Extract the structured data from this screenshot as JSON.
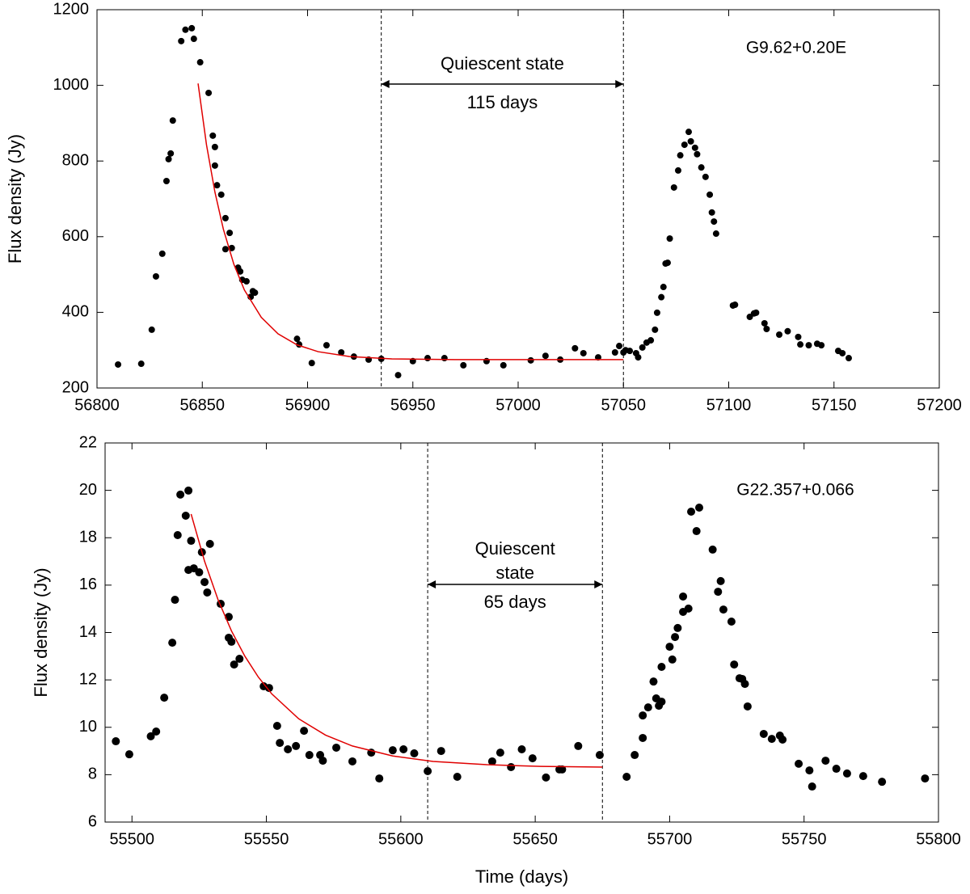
{
  "chart_data": [
    {
      "type": "scatter",
      "ylabel": "Flux density (Jy)",
      "xlim": [
        56800,
        57200
      ],
      "xticks": [
        56800,
        56850,
        56900,
        56950,
        57000,
        57050,
        57100,
        57150,
        57200
      ],
      "ylim": [
        200,
        1200
      ],
      "yticks": [
        200,
        400,
        600,
        800,
        1000,
        1200
      ],
      "label": "G9.62+0.20E",
      "interval": {
        "bounds": [
          56935,
          57050
        ],
        "text": [
          "Quiescent state"
        ],
        "duration": "115 days"
      },
      "series": [
        {
          "style": "points",
          "color": "#000000",
          "x": [
            56810,
            56821,
            56826,
            56828,
            56831,
            56833,
            56834,
            56835,
            56836,
            56840,
            56842,
            56845,
            56846,
            56849,
            56853,
            56855,
            56856,
            56856,
            56857,
            56859,
            56861,
            56861,
            56863,
            56864,
            56867,
            56868,
            56869,
            56871,
            56873,
            56874,
            56875,
            56895,
            56896,
            56902,
            56909,
            56916,
            56922,
            56929,
            56935,
            56943,
            56950,
            56957,
            56965,
            56974,
            56985,
            56993,
            57006,
            57013,
            57020,
            57027,
            57031,
            57038,
            57046,
            57048,
            57050,
            57051,
            57053,
            57056,
            57057,
            57059,
            57061,
            57063,
            57065,
            57066,
            57068,
            57069,
            57070,
            57071,
            57072,
            57074,
            57076,
            57077,
            57079,
            57081,
            57082,
            57084,
            57085,
            57087,
            57089,
            57091,
            57092,
            57093,
            57094,
            57102,
            57103,
            57110,
            57112,
            57113,
            57117,
            57118,
            57124,
            57128,
            57133,
            57134,
            57138,
            57142,
            57144,
            57152,
            57154,
            57157
          ],
          "values": [
            262,
            264,
            354,
            495,
            555,
            747,
            805,
            820,
            907,
            1117,
            1147,
            1151,
            1123,
            1061,
            980,
            867,
            837,
            788,
            736,
            711,
            567,
            649,
            610,
            570,
            518,
            508,
            486,
            482,
            441,
            456,
            452,
            330,
            315,
            266,
            313,
            294,
            283,
            275,
            277,
            234,
            271,
            279,
            279,
            260,
            271,
            260,
            273,
            285,
            275,
            305,
            292,
            281,
            294,
            311,
            294,
            300,
            298,
            292,
            281,
            307,
            320,
            326,
            354,
            399,
            440,
            467,
            529,
            531,
            595,
            730,
            775,
            815,
            843,
            877,
            852,
            835,
            818,
            783,
            758,
            711,
            664,
            640,
            608,
            418,
            420,
            388,
            397,
            399,
            371,
            356,
            341,
            350,
            335,
            315,
            313,
            317,
            313,
            298,
            292,
            279
          ]
        },
        {
          "style": "line",
          "color": "#e00000",
          "x": [
            56848,
            56852,
            56856,
            56860,
            56865,
            56870,
            56878,
            56886,
            56895,
            56905,
            56920,
            56940,
            56970,
            57010,
            57050
          ],
          "values": [
            1005,
            843,
            718,
            620,
            527,
            459,
            387,
            343,
            314,
            296,
            283,
            277,
            275,
            275,
            275
          ]
        }
      ]
    },
    {
      "type": "scatter",
      "xlabel": "Time (days)",
      "ylabel": "Flux density (Jy)",
      "xlim": [
        55490,
        55800
      ],
      "xticks": [
        55500,
        55550,
        55600,
        55650,
        55700,
        55750,
        55800
      ],
      "ylim": [
        6,
        22
      ],
      "yticks": [
        6,
        8,
        10,
        12,
        14,
        16,
        18,
        20,
        22
      ],
      "label": "G22.357+0.066",
      "interval": {
        "bounds": [
          55610,
          55675
        ],
        "text": [
          "Quiescent",
          "state"
        ],
        "duration": "65 days"
      },
      "series": [
        {
          "style": "points",
          "color": "#000000",
          "x": [
            55494,
            55499,
            55507,
            55509,
            55512,
            55515,
            55516,
            55517,
            55518,
            55520,
            55521,
            55521,
            55522,
            55523,
            55525,
            55526,
            55527,
            55528,
            55529,
            55533,
            55536,
            55536,
            55537,
            55538,
            55540,
            55549,
            55551,
            55554,
            55555,
            55558,
            55561,
            55564,
            55566,
            55570,
            55571,
            55576,
            55582,
            55589,
            55592,
            55597,
            55601,
            55605,
            55610,
            55615,
            55621,
            55634,
            55637,
            55641,
            55645,
            55649,
            55654,
            55659,
            55660,
            55666,
            55674,
            55684,
            55687,
            55690,
            55690,
            55692,
            55694,
            55695,
            55696,
            55697,
            55697,
            55700,
            55701,
            55702,
            55703,
            55705,
            55705,
            55707,
            55708,
            55710,
            55711,
            55716,
            55718,
            55719,
            55720,
            55723,
            55724,
            55726,
            55727,
            55728,
            55729,
            55735,
            55738,
            55741,
            55742,
            55748,
            55752,
            55753,
            55758,
            55762,
            55766,
            55772,
            55779,
            55795
          ],
          "values": [
            9.41,
            8.86,
            9.62,
            9.82,
            11.25,
            13.57,
            15.38,
            18.11,
            19.82,
            18.93,
            19.99,
            16.64,
            17.87,
            16.71,
            16.54,
            17.39,
            16.13,
            15.69,
            17.74,
            15.21,
            14.66,
            13.78,
            13.61,
            12.65,
            12.89,
            11.73,
            11.66,
            10.06,
            9.34,
            9.07,
            9.21,
            9.85,
            8.83,
            8.83,
            8.59,
            9.14,
            8.56,
            8.93,
            7.84,
            9.03,
            9.07,
            8.9,
            8.15,
            9.0,
            7.91,
            8.56,
            8.93,
            8.32,
            9.07,
            8.69,
            7.88,
            8.22,
            8.22,
            9.21,
            8.83,
            7.91,
            8.83,
            9.55,
            10.5,
            10.84,
            11.93,
            11.22,
            10.91,
            11.08,
            12.55,
            13.4,
            12.86,
            13.81,
            14.19,
            14.87,
            15.52,
            15.01,
            19.1,
            18.28,
            19.27,
            17.5,
            15.72,
            16.17,
            14.97,
            14.46,
            12.65,
            12.07,
            12.04,
            11.83,
            10.88,
            9.72,
            9.51,
            9.65,
            9.48,
            8.46,
            8.18,
            7.5,
            8.59,
            8.25,
            8.05,
            7.94,
            7.7,
            7.84
          ]
        },
        {
          "style": "line",
          "color": "#e00000",
          "x": [
            55522,
            55527,
            55532,
            55537,
            55542,
            55547,
            55552,
            55562,
            55572,
            55582,
            55597,
            55612,
            55632,
            55652,
            55675
          ],
          "values": [
            19.0,
            17.01,
            15.39,
            14.07,
            13.0,
            12.12,
            11.41,
            10.36,
            9.67,
            9.21,
            8.79,
            8.56,
            8.42,
            8.35,
            8.32
          ]
        }
      ]
    }
  ]
}
